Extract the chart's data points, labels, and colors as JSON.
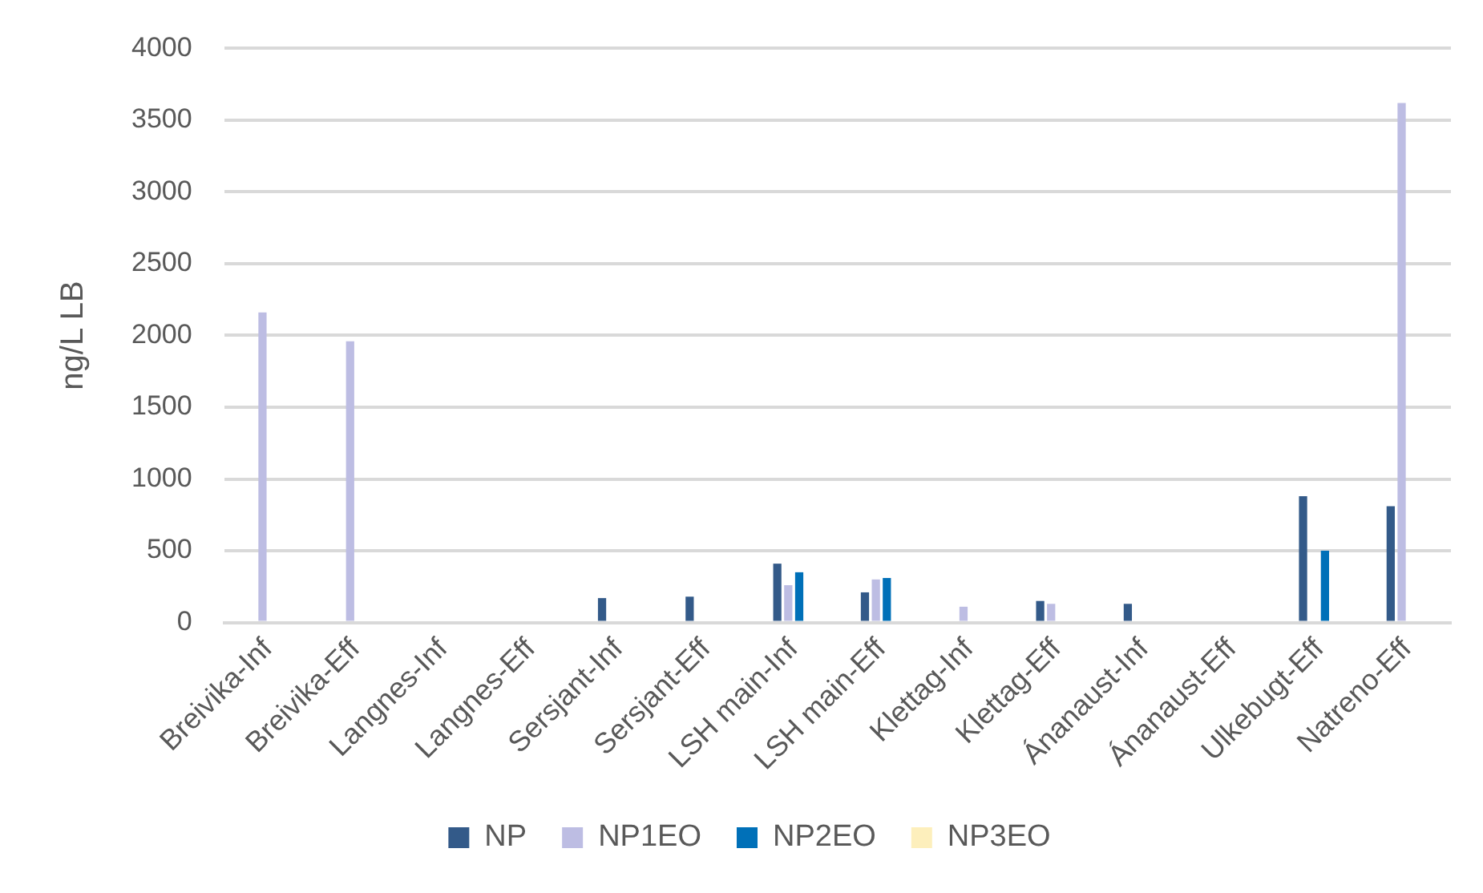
{
  "chart_data": {
    "type": "bar",
    "ylabel": "ng/L LB",
    "categories": [
      "Breivika-Inf",
      "Breivika-Eff",
      "Langnes-Inf",
      "Langnes-Eff",
      "Sersjant-Inf",
      "Sersjant-Eff",
      "LSH main-Inf",
      "LSH main-Eff",
      "Klettag-Inf",
      "Klettag-Eff",
      "Ánanaust-Inf",
      "Ánanaust-Eff",
      "Ulkebugt-Eff",
      "Natreno-Eff"
    ],
    "series": [
      {
        "name": "NP",
        "color": "#335a89",
        "values": [
          null,
          null,
          null,
          null,
          170,
          180,
          410,
          210,
          null,
          150,
          130,
          null,
          880,
          810
        ]
      },
      {
        "name": "NP1EO",
        "color": "#bdbde3",
        "values": [
          2160,
          1960,
          null,
          null,
          null,
          null,
          260,
          300,
          110,
          130,
          null,
          null,
          null,
          3620
        ]
      },
      {
        "name": "NP2EO",
        "color": "#0070b8",
        "values": [
          null,
          null,
          null,
          null,
          null,
          null,
          350,
          310,
          null,
          null,
          null,
          null,
          500,
          null
        ]
      },
      {
        "name": "NP3EO",
        "color": "#fdefbc",
        "values": [
          null,
          null,
          null,
          null,
          null,
          null,
          null,
          null,
          null,
          null,
          null,
          null,
          null,
          null
        ]
      }
    ],
    "ylim": [
      0,
      4000
    ],
    "yticks": [
      0,
      500,
      1000,
      1500,
      2000,
      2500,
      3000,
      3500,
      4000
    ],
    "grid": "y",
    "legend": "bottom"
  }
}
